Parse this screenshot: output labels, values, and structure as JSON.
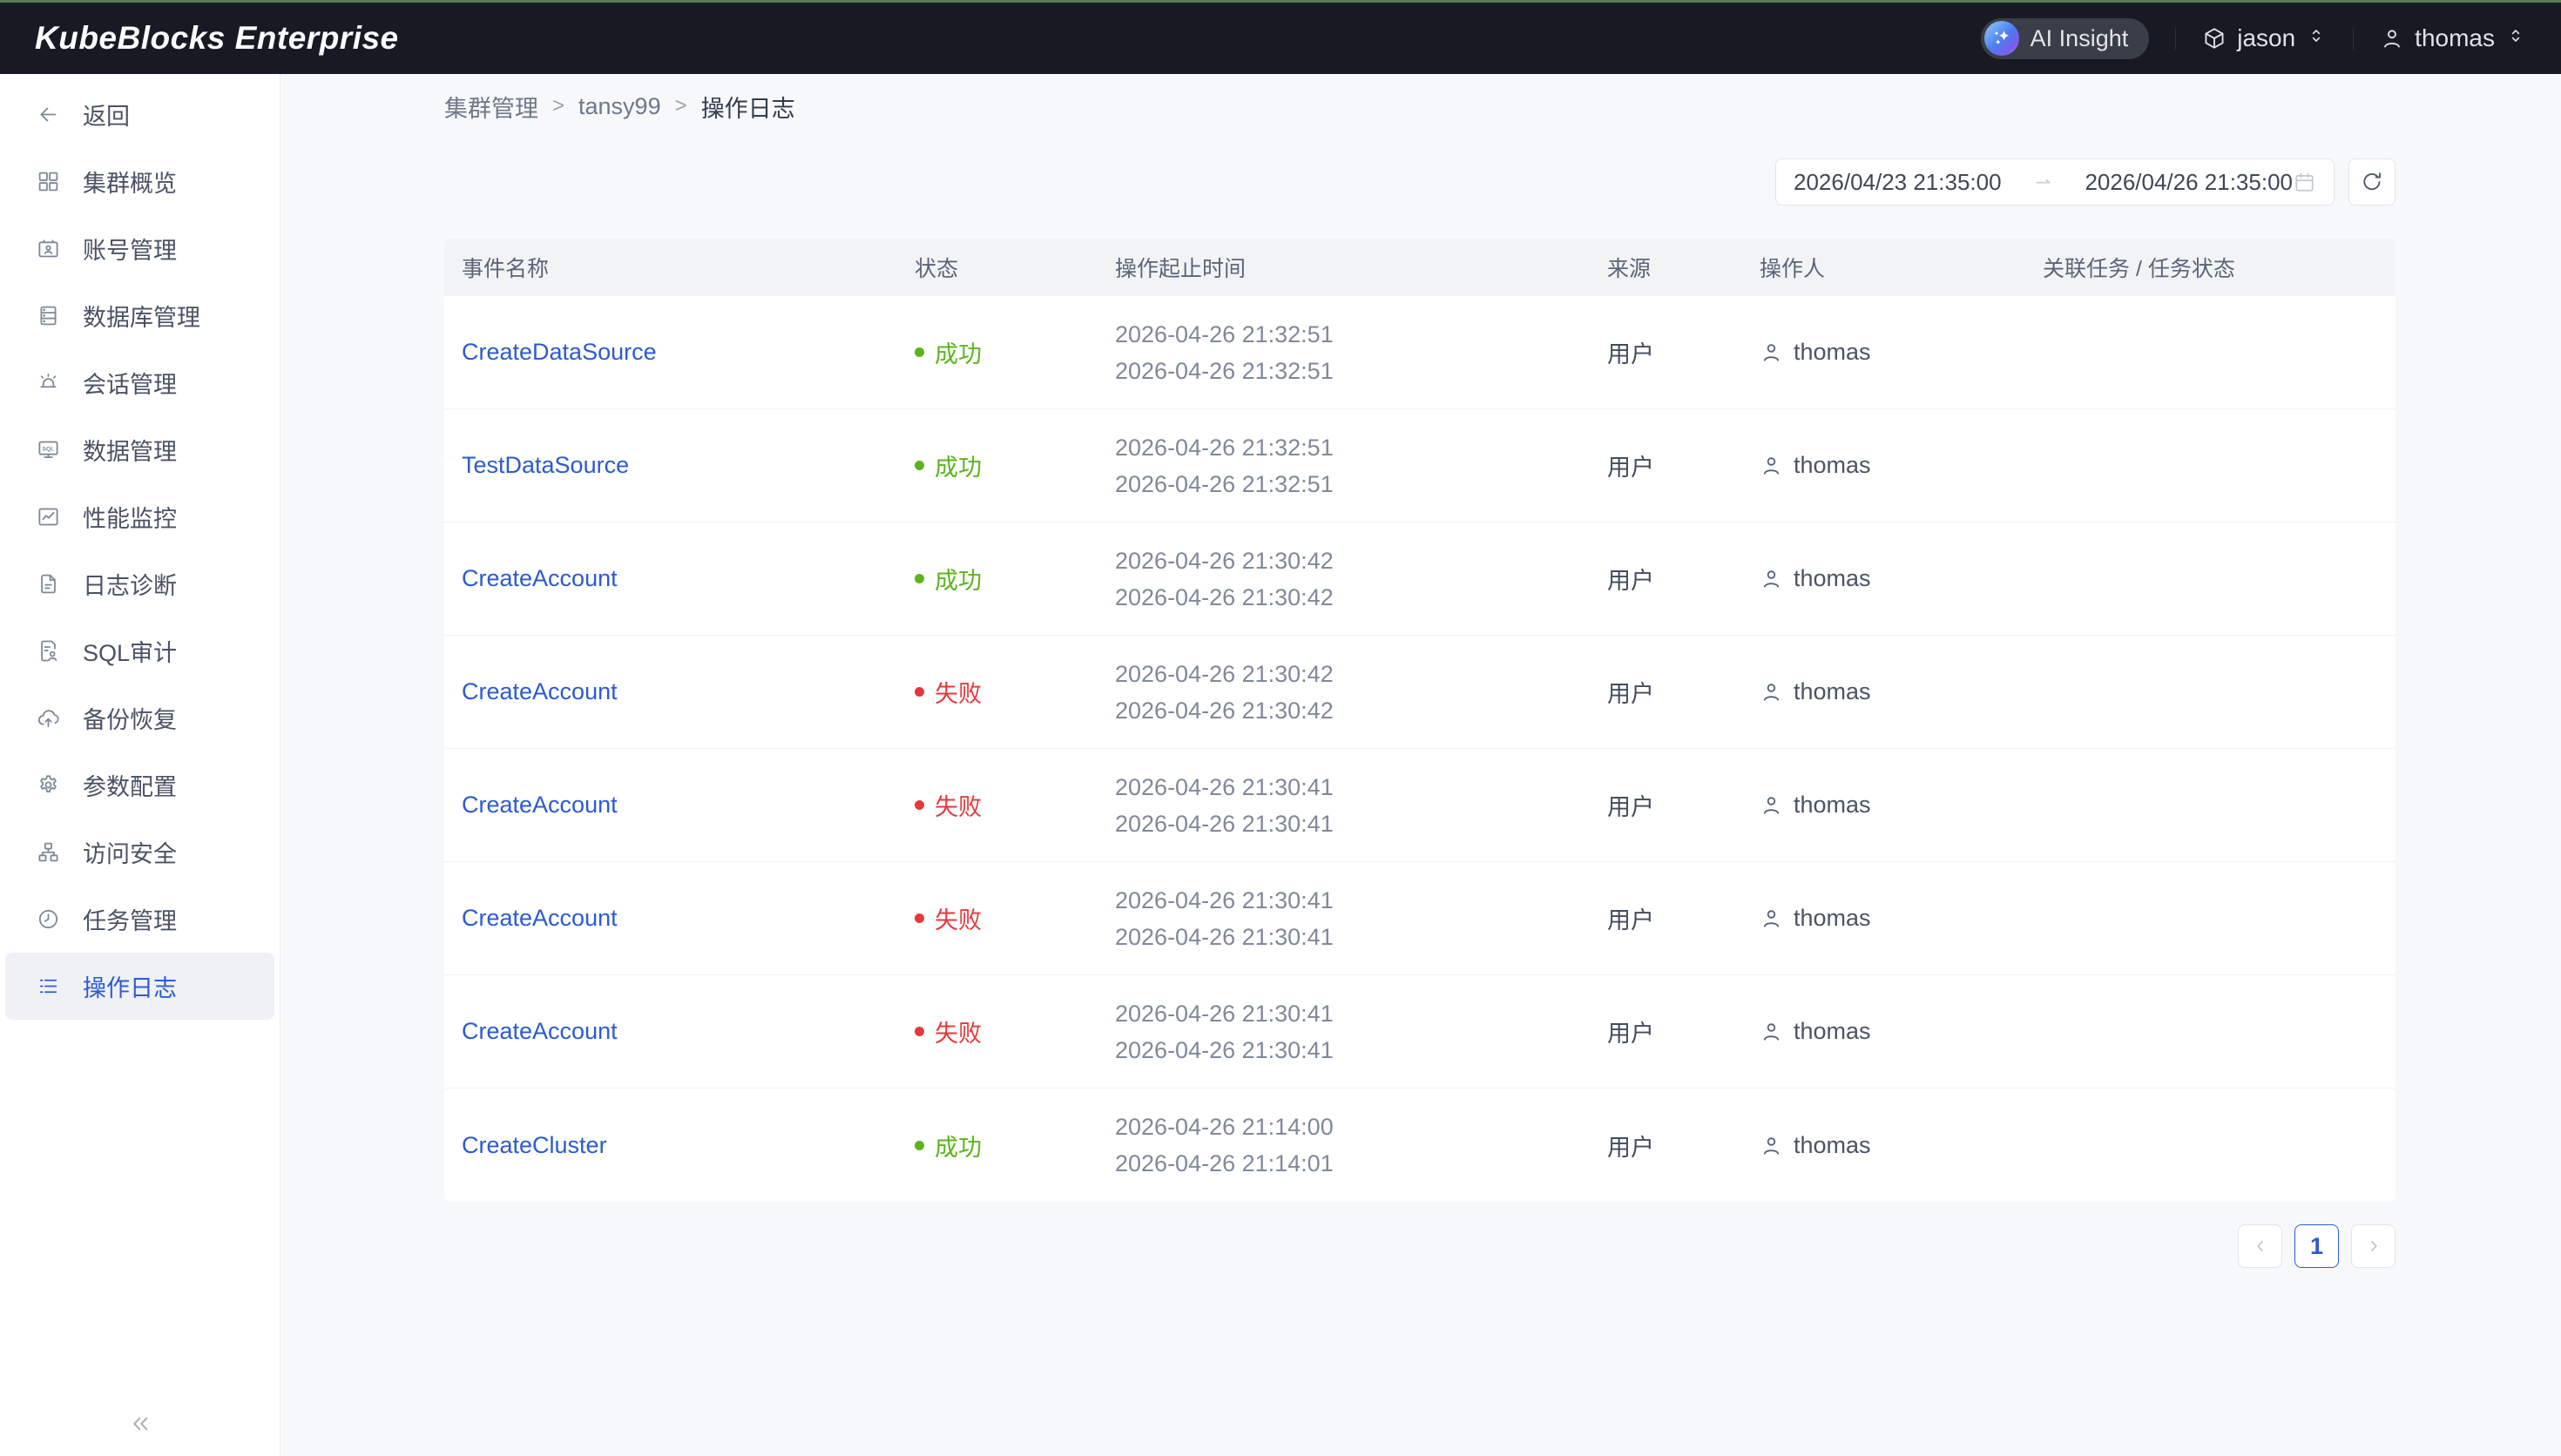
{
  "topbar": {
    "brand": "KubeBlocks Enterprise",
    "ai_insight_label": "AI Insight",
    "org": {
      "name": "jason"
    },
    "user": {
      "name": "thomas"
    }
  },
  "sidebar": {
    "back_label": "返回",
    "items": [
      {
        "id": "cluster-overview",
        "label": "集群概览"
      },
      {
        "id": "account-management",
        "label": "账号管理"
      },
      {
        "id": "database-management",
        "label": "数据库管理"
      },
      {
        "id": "session-management",
        "label": "会话管理"
      },
      {
        "id": "data-management",
        "label": "数据管理"
      },
      {
        "id": "performance-monitoring",
        "label": "性能监控"
      },
      {
        "id": "log-diagnosis",
        "label": "日志诊断"
      },
      {
        "id": "sql-audit",
        "label": "SQL审计"
      },
      {
        "id": "backup-restore",
        "label": "备份恢复"
      },
      {
        "id": "parameter-config",
        "label": "参数配置"
      },
      {
        "id": "access-security",
        "label": "访问安全"
      },
      {
        "id": "task-management",
        "label": "任务管理"
      },
      {
        "id": "operation-log",
        "label": "操作日志",
        "selected": true
      }
    ]
  },
  "breadcrumb": {
    "items": [
      "集群管理",
      "tansy99",
      "操作日志"
    ],
    "separator": ">"
  },
  "filters": {
    "date_start": "2026/04/23 21:35:00",
    "date_end": "2026/04/26 21:35:00"
  },
  "table": {
    "columns": [
      "事件名称",
      "状态",
      "操作起止时间",
      "来源",
      "操作人",
      "关联任务 / 任务状态"
    ],
    "status_colors": {
      "success": "#5bb41d",
      "fail": "#e5383c"
    },
    "rows": [
      {
        "event": "CreateDataSource",
        "status": "成功",
        "status_type": "success",
        "start": "2026-04-26 21:32:51",
        "end": "2026-04-26 21:32:51",
        "source": "用户",
        "operator": "thomas",
        "task": ""
      },
      {
        "event": "TestDataSource",
        "status": "成功",
        "status_type": "success",
        "start": "2026-04-26 21:32:51",
        "end": "2026-04-26 21:32:51",
        "source": "用户",
        "operator": "thomas",
        "task": ""
      },
      {
        "event": "CreateAccount",
        "status": "成功",
        "status_type": "success",
        "start": "2026-04-26 21:30:42",
        "end": "2026-04-26 21:30:42",
        "source": "用户",
        "operator": "thomas",
        "task": ""
      },
      {
        "event": "CreateAccount",
        "status": "失败",
        "status_type": "fail",
        "start": "2026-04-26 21:30:42",
        "end": "2026-04-26 21:30:42",
        "source": "用户",
        "operator": "thomas",
        "task": ""
      },
      {
        "event": "CreateAccount",
        "status": "失败",
        "status_type": "fail",
        "start": "2026-04-26 21:30:41",
        "end": "2026-04-26 21:30:41",
        "source": "用户",
        "operator": "thomas",
        "task": ""
      },
      {
        "event": "CreateAccount",
        "status": "失败",
        "status_type": "fail",
        "start": "2026-04-26 21:30:41",
        "end": "2026-04-26 21:30:41",
        "source": "用户",
        "operator": "thomas",
        "task": ""
      },
      {
        "event": "CreateAccount",
        "status": "失败",
        "status_type": "fail",
        "start": "2026-04-26 21:30:41",
        "end": "2026-04-26 21:30:41",
        "source": "用户",
        "operator": "thomas",
        "task": ""
      },
      {
        "event": "CreateCluster",
        "status": "成功",
        "status_type": "success",
        "start": "2026-04-26 21:14:00",
        "end": "2026-04-26 21:14:01",
        "source": "用户",
        "operator": "thomas",
        "task": ""
      }
    ]
  },
  "pagination": {
    "current": "1"
  }
}
